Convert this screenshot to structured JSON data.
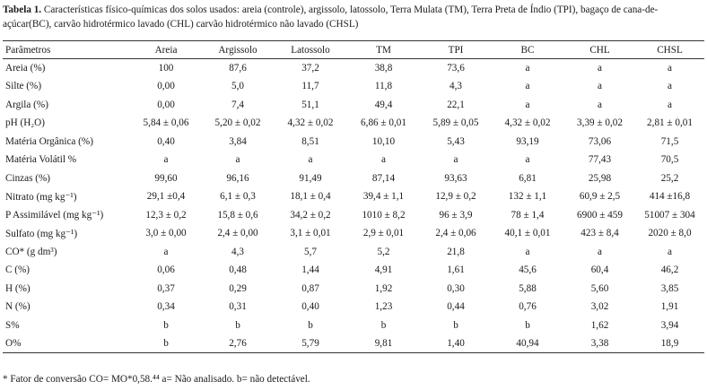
{
  "caption": {
    "label": "Tabela 1.",
    "text": "Características físico-químicas dos solos usados: areia (controle), argissolo, latossolo, Terra Mulata (TM), Terra Preta de Índio (TPI), bagaço de cana-de-açúcar(BC), carvão hidrotérmico lavado (CHL) carvão hidrotérmico não lavado (CHSL)"
  },
  "table": {
    "headers": [
      "Parâmetros",
      "Areia",
      "Argissolo",
      "Latossolo",
      "TM",
      "TPI",
      "BC",
      "CHL",
      "CHSL"
    ],
    "rows": [
      {
        "param": "Areia (%)",
        "values": [
          "100",
          "87,6",
          "37,2",
          "38,8",
          "73,6",
          "a",
          "a",
          "a"
        ]
      },
      {
        "param": "Silte (%)",
        "values": [
          "0,00",
          "5,0",
          "11,7",
          "11,8",
          "4,3",
          "a",
          "a",
          "a"
        ]
      },
      {
        "param": "Argila (%)",
        "values": [
          "0,00",
          "7,4",
          "51,1",
          "49,4",
          "22,1",
          "a",
          "a",
          "a"
        ]
      },
      {
        "param": "pH (H₂O)",
        "values": [
          "5,84 ± 0,06",
          "5,20 ± 0,02",
          "4,32 ± 0,02",
          "6,86 ± 0,01",
          "5,89 ± 0,05",
          "4,32 ± 0,02",
          "3,39 ± 0,02",
          "2,81 ± 0,01"
        ]
      },
      {
        "param": "Matéria Orgânica (%)",
        "values": [
          "0,40",
          "3,84",
          "8,51",
          "10,10",
          "5,43",
          "93,19",
          "73,06",
          "71,5"
        ]
      },
      {
        "param": "Matéria Volátil %",
        "values": [
          "a",
          "a",
          "a",
          "a",
          "a",
          "a",
          "77,43",
          "70,5"
        ]
      },
      {
        "param": "Cinzas (%)",
        "values": [
          "99,60",
          "96,16",
          "91,49",
          "87,14",
          "93,63",
          "6,81",
          "25,98",
          "25,2"
        ]
      },
      {
        "param": "Nitrato (mg kg⁻¹)",
        "values": [
          "29,1 ±0,4",
          "6,1 ± 0,3",
          "18,1 ± 0,4",
          "39,4 ± 1,1",
          "12,9 ± 0,2",
          "132 ± 1,1",
          "60,9 ± 2,5",
          "414 ±16,8"
        ]
      },
      {
        "param": "P Assimilável (mg kg⁻¹)",
        "values": [
          "12,3 ± 0,2",
          "15,8 ± 0,6",
          "34,2 ± 0,2",
          "1010 ± 8,2",
          "96 ± 3,9",
          "78 ± 1,4",
          "6900 ± 459",
          "51007 ± 304"
        ]
      },
      {
        "param": "Sulfato (mg kg⁻¹)",
        "values": [
          "3,0 ± 0,00",
          "2,4 ± 0,00",
          "3,1 ± 0,01",
          "2,9 ± 0,01",
          "2,4 ± 0,06",
          "40,1 ± 0,01",
          "423 ± 8,4",
          "2020 ± 8,0"
        ]
      },
      {
        "param": "CO* (g dm³)",
        "values": [
          "a",
          "4,3",
          "5,7",
          "5,2",
          "21,8",
          "a",
          "a",
          "a"
        ]
      },
      {
        "param": "C (%)",
        "values": [
          "0,06",
          "0,48",
          "1,44",
          "4,91",
          "1,61",
          "45,6",
          "60,4",
          "46,2"
        ]
      },
      {
        "param": "H (%)",
        "values": [
          "0,37",
          "0,29",
          "0,87",
          "1,92",
          "0,30",
          "5,88",
          "5,60",
          "3,85"
        ]
      },
      {
        "param": "N (%)",
        "values": [
          "0,34",
          "0,31",
          "0,40",
          "1,23",
          "0,44",
          "0,76",
          "3,02",
          "1,91"
        ]
      },
      {
        "param": "S%",
        "values": [
          "b",
          "b",
          "b",
          "b",
          "b",
          "b",
          "1,62",
          "3,94"
        ]
      },
      {
        "param": "O%",
        "values": [
          "b",
          "2,76",
          "5,79",
          "9,81",
          "1,40",
          "40,94",
          "3,38",
          "18,9"
        ]
      }
    ]
  },
  "footnote": "* Fator de conversão CO= MO*0,58.⁴⁴ a= Não analisado. b= não detectável."
}
